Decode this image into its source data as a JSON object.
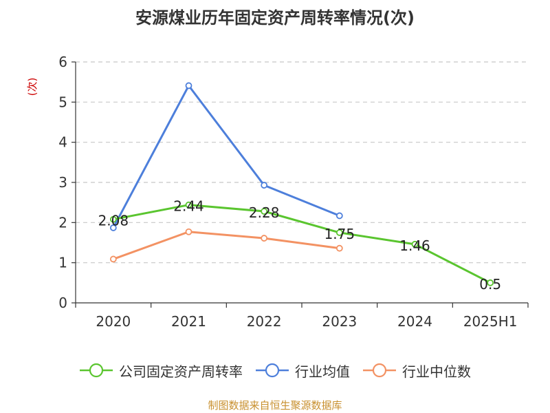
{
  "title": "安源煤业历年固定资产周转率情况(次)",
  "source": "制图数据来自恒生聚源数据库",
  "chart_data": {
    "type": "line",
    "title": "安源煤业历年固定资产周转率情况(次)",
    "ylabel": "(次)",
    "xlabel": "",
    "ylim": [
      0,
      6
    ],
    "yticks": [
      "0",
      "1",
      "2",
      "3",
      "4",
      "5",
      "6"
    ],
    "categories": [
      "2020",
      "2021",
      "2022",
      "2023",
      "2024",
      "2025H1"
    ],
    "grid": true,
    "legend_position": "bottom",
    "series": [
      {
        "name": "公司固定资产周转率",
        "color": "#5ac52f",
        "values": [
          2.08,
          2.44,
          2.28,
          1.75,
          1.46,
          0.5
        ],
        "labels": [
          "2.08",
          "2.44",
          "2.28",
          "1.75",
          "1.46",
          "0.5"
        ]
      },
      {
        "name": "行业均值",
        "color": "#4d7fdb",
        "values": [
          1.87,
          5.41,
          2.93,
          2.17,
          null,
          null
        ]
      },
      {
        "name": "行业中位数",
        "color": "#f39263",
        "values": [
          1.09,
          1.77,
          1.61,
          1.36,
          null,
          null
        ]
      }
    ]
  }
}
